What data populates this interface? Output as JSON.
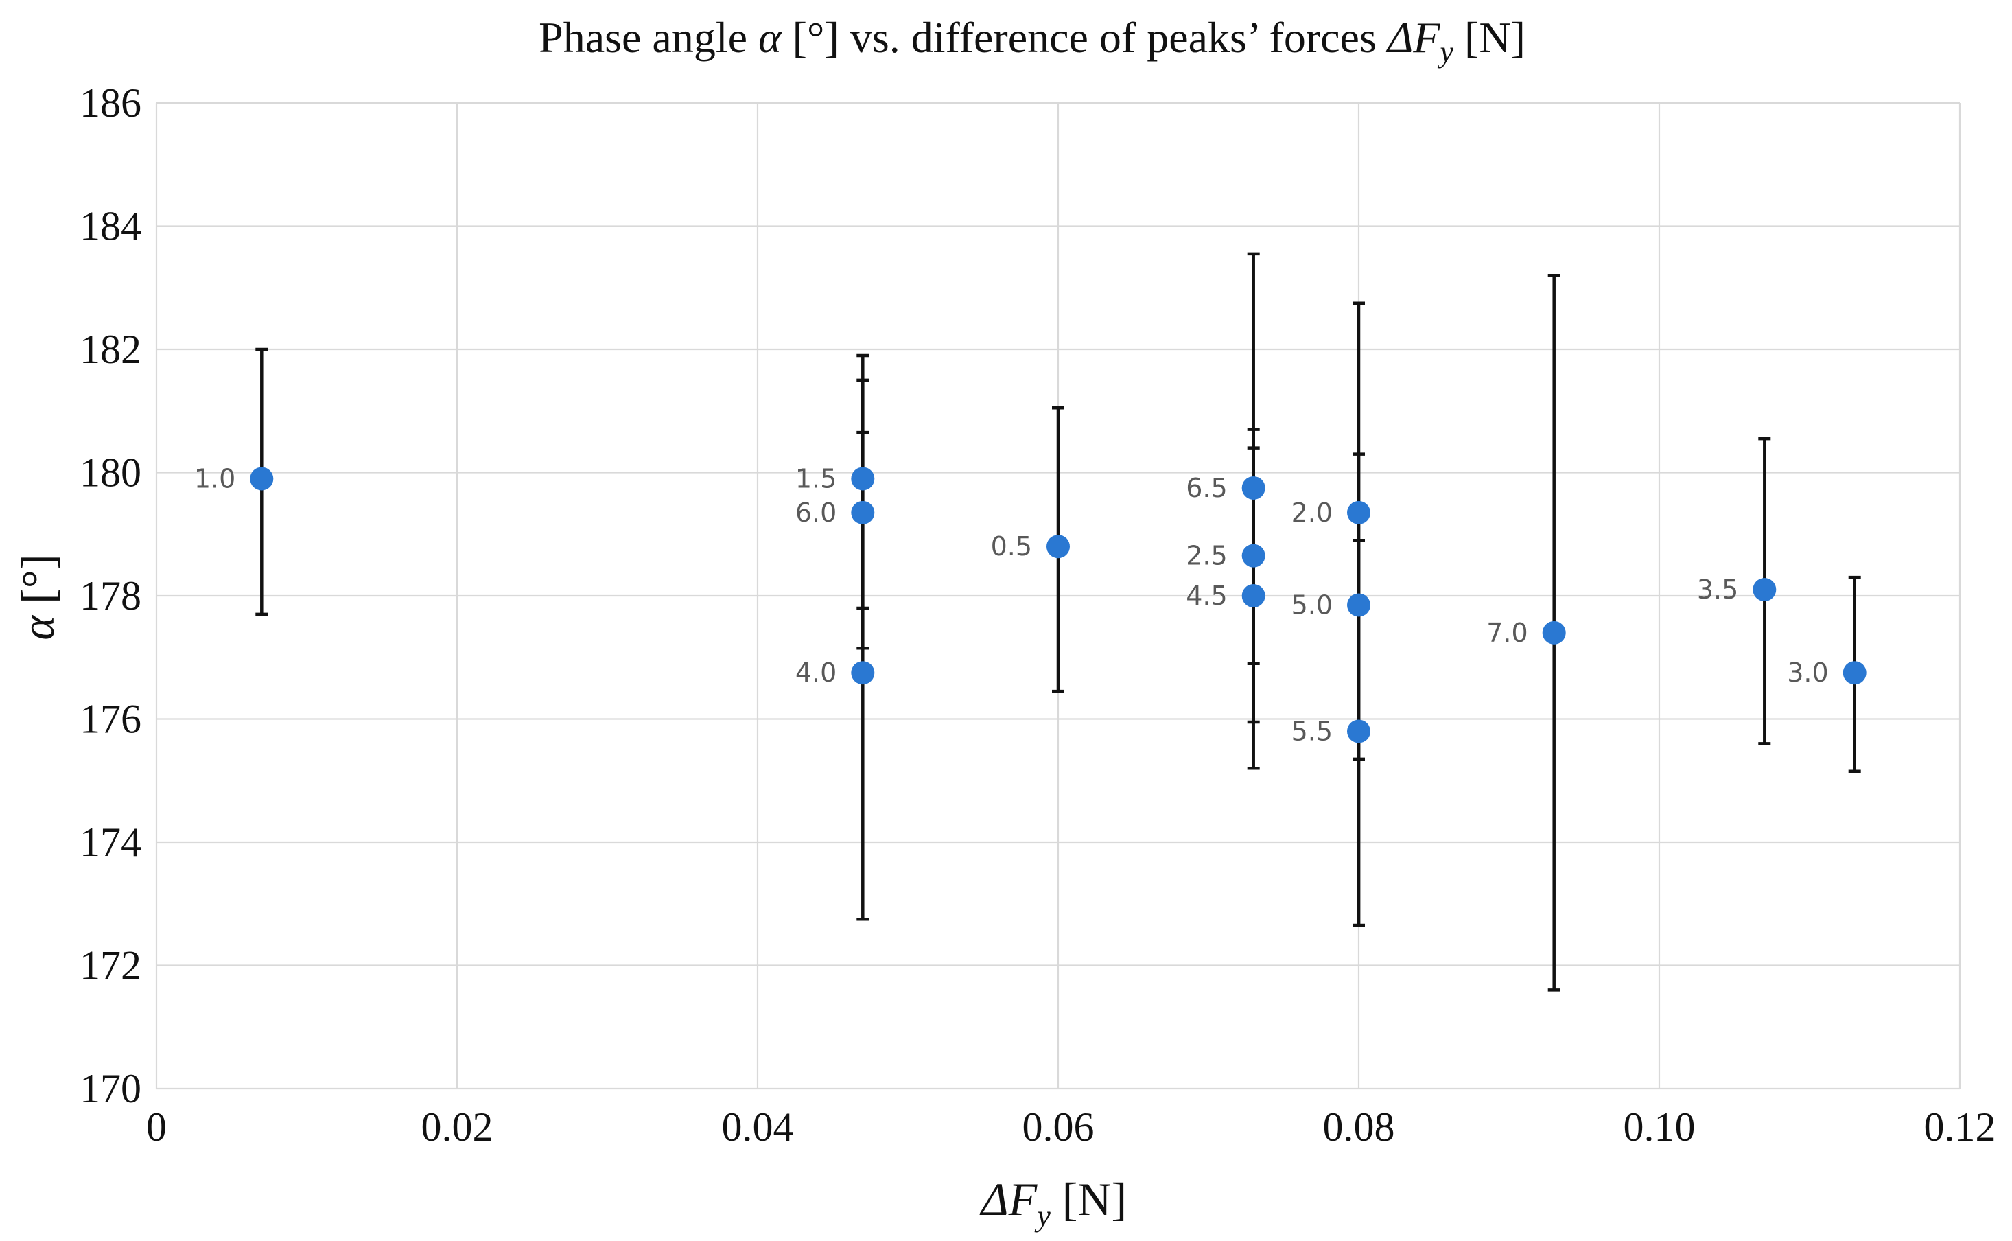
{
  "chart_data": {
    "type": "scatter",
    "title": {
      "prefix": "Phase angle ",
      "alpha": "α",
      "middle": " [°] vs. difference of peaks’ forces ",
      "delta_f": "ΔF",
      "delta_f_sub": "y",
      "suffix": " [N]"
    },
    "xlabel": {
      "delta_f": "ΔF",
      "delta_f_sub": "y",
      "unit": " [N]"
    },
    "ylabel": {
      "alpha": "α",
      "unit": " [°]"
    },
    "xlim": [
      0,
      0.12
    ],
    "ylim": [
      170,
      186
    ],
    "xticks": [
      "0",
      "0.02",
      "0.04",
      "0.06",
      "0.08",
      "0.10",
      "0.12"
    ],
    "xtick_values": [
      0,
      0.02,
      0.04,
      0.06,
      0.08,
      0.1,
      0.12
    ],
    "yticks": [
      "170",
      "172",
      "174",
      "176",
      "178",
      "180",
      "182",
      "184",
      "186"
    ],
    "ytick_values": [
      170,
      172,
      174,
      176,
      178,
      180,
      182,
      184,
      186
    ],
    "grid": true,
    "marker_color": "#2a78d2",
    "points": [
      {
        "label": "1.0",
        "x": 0.007,
        "y": 179.9,
        "ylow": 177.7,
        "yhigh": 182.0
      },
      {
        "label": "1.5",
        "x": 0.047,
        "y": 179.9,
        "ylow": 177.8,
        "yhigh": 181.9
      },
      {
        "label": "6.0",
        "x": 0.047,
        "y": 179.35,
        "ylow": 177.15,
        "yhigh": 181.5
      },
      {
        "label": "4.0",
        "x": 0.047,
        "y": 176.75,
        "ylow": 172.75,
        "yhigh": 180.65
      },
      {
        "label": "0.5",
        "x": 0.06,
        "y": 178.8,
        "ylow": 176.45,
        "yhigh": 181.05
      },
      {
        "label": "6.5",
        "x": 0.073,
        "y": 179.75,
        "ylow": 175.95,
        "yhigh": 183.55
      },
      {
        "label": "2.5",
        "x": 0.073,
        "y": 178.65,
        "ylow": 176.9,
        "yhigh": 180.4
      },
      {
        "label": "4.5",
        "x": 0.073,
        "y": 178.0,
        "ylow": 175.2,
        "yhigh": 180.7
      },
      {
        "label": "2.0",
        "x": 0.08,
        "y": 179.35,
        "ylow": 175.35,
        "yhigh": 182.75
      },
      {
        "label": "5.0",
        "x": 0.08,
        "y": 177.85,
        "ylow": 172.65,
        "yhigh": 180.3
      },
      {
        "label": "5.5",
        "x": 0.08,
        "y": 175.8,
        "ylow": 172.65,
        "yhigh": 178.9
      },
      {
        "label": "7.0",
        "x": 0.093,
        "y": 177.4,
        "ylow": 171.6,
        "yhigh": 183.2
      },
      {
        "label": "3.5",
        "x": 0.107,
        "y": 178.1,
        "ylow": 175.6,
        "yhigh": 180.55
      },
      {
        "label": "3.0",
        "x": 0.113,
        "y": 176.75,
        "ylow": 175.15,
        "yhigh": 178.3
      }
    ]
  }
}
